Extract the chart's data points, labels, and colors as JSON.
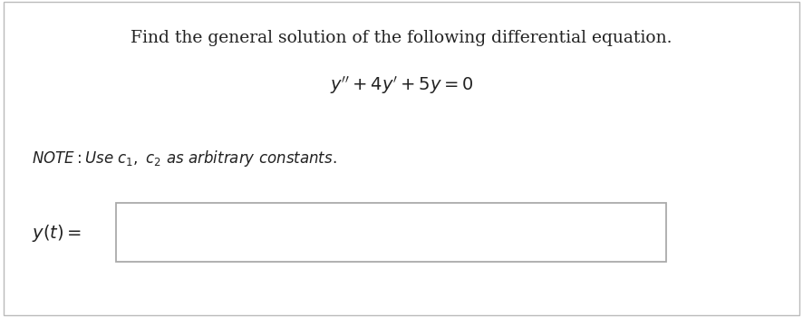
{
  "bg_color": "#ffffff",
  "border_color": "#bbbbbb",
  "text_color": "#222222",
  "box_color": "#aaaaaa",
  "title_line1": "Find the general solution of the following differential equation.",
  "title_line2": "$y'' + 4y' + 5y = 0$",
  "note_text": "NOTE: Use $c_1$, $c_2$ as arbitrary constants.",
  "label_text": "$y(t) =$",
  "figsize": [
    8.86,
    3.5
  ],
  "dpi": 100
}
